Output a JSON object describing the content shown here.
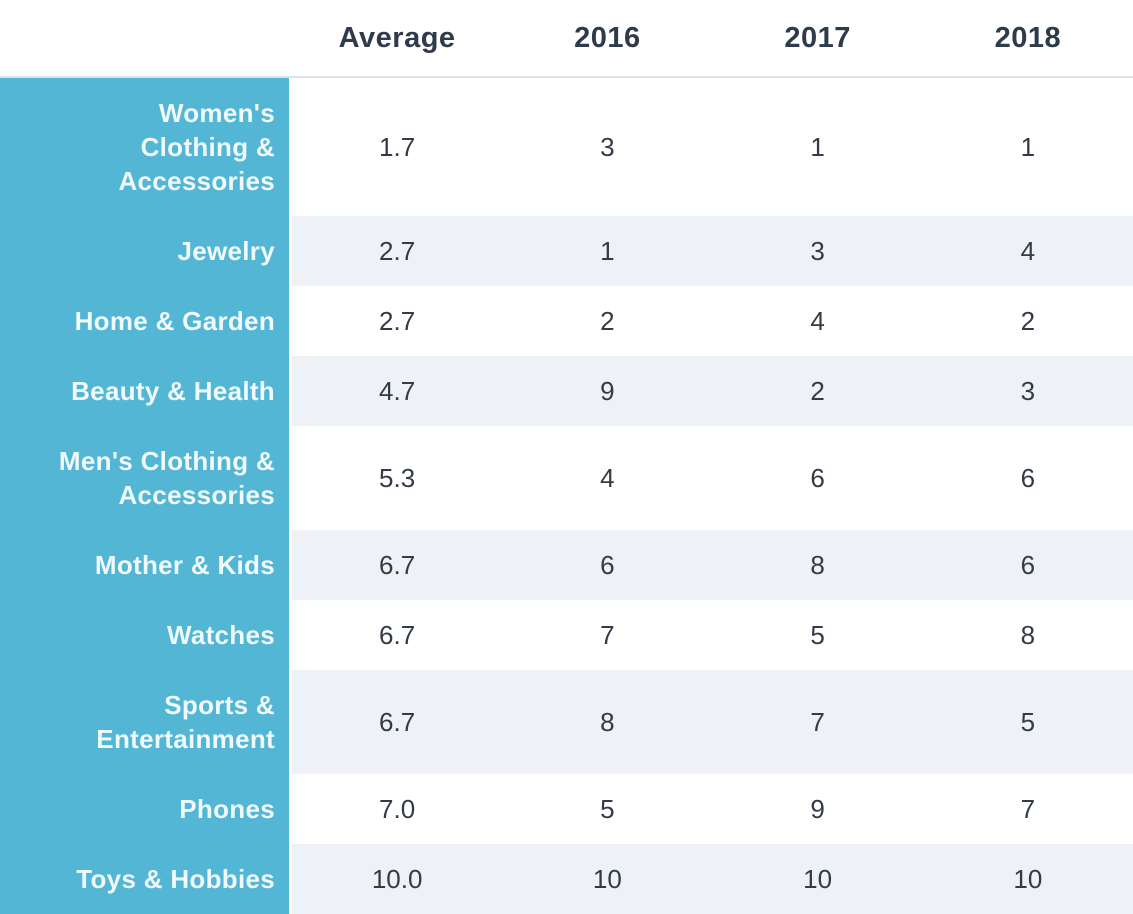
{
  "colors": {
    "accent_teal": "#52b6d4",
    "row_stripe": "#eef1f6",
    "header_text": "#2e3b4b",
    "value_text": "#323b46",
    "label_text": "#f0f9fc",
    "header_underline": "#dfe3e8"
  },
  "table": {
    "columns": [
      "Average",
      "2016",
      "2017",
      "2018"
    ],
    "rows": [
      {
        "label": "Women's Clothing & Accessories",
        "values": [
          "1.7",
          "3",
          "1",
          "1"
        ]
      },
      {
        "label": "Jewelry",
        "values": [
          "2.7",
          "1",
          "3",
          "4"
        ]
      },
      {
        "label": "Home & Garden",
        "values": [
          "2.7",
          "2",
          "4",
          "2"
        ]
      },
      {
        "label": "Beauty & Health",
        "values": [
          "4.7",
          "9",
          "2",
          "3"
        ]
      },
      {
        "label": "Men's Clothing & Accessories",
        "values": [
          "5.3",
          "4",
          "6",
          "6"
        ]
      },
      {
        "label": "Mother & Kids",
        "values": [
          "6.7",
          "6",
          "8",
          "6"
        ]
      },
      {
        "label": "Watches",
        "values": [
          "6.7",
          "7",
          "5",
          "8"
        ]
      },
      {
        "label": "Sports & Entertainment",
        "values": [
          "6.7",
          "8",
          "7",
          "5"
        ]
      },
      {
        "label": "Phones",
        "values": [
          "7.0",
          "5",
          "9",
          "7"
        ]
      },
      {
        "label": "Toys & Hobbies",
        "values": [
          "10.0",
          "10",
          "10",
          "10"
        ]
      }
    ]
  },
  "chart_data": {
    "type": "table",
    "title": "",
    "columns": [
      "Average",
      "2016",
      "2017",
      "2018"
    ],
    "row_categories": [
      "Women's Clothing & Accessories",
      "Jewelry",
      "Home & Garden",
      "Beauty & Health",
      "Men's Clothing & Accessories",
      "Mother & Kids",
      "Watches",
      "Sports & Entertainment",
      "Phones",
      "Toys & Hobbies"
    ],
    "series": [
      {
        "name": "Average",
        "values": [
          1.7,
          2.7,
          2.7,
          4.7,
          5.3,
          6.7,
          6.7,
          6.7,
          7.0,
          10.0
        ]
      },
      {
        "name": "2016",
        "values": [
          3,
          1,
          2,
          9,
          4,
          6,
          7,
          8,
          5,
          10
        ]
      },
      {
        "name": "2017",
        "values": [
          1,
          3,
          4,
          2,
          6,
          8,
          5,
          7,
          9,
          10
        ]
      },
      {
        "name": "2018",
        "values": [
          1,
          4,
          2,
          3,
          6,
          6,
          8,
          5,
          7,
          10
        ]
      }
    ],
    "layout_hints": {
      "striped_rows": true,
      "label_column_background": "#52b6d4",
      "value_range": [
        1,
        10
      ]
    }
  }
}
